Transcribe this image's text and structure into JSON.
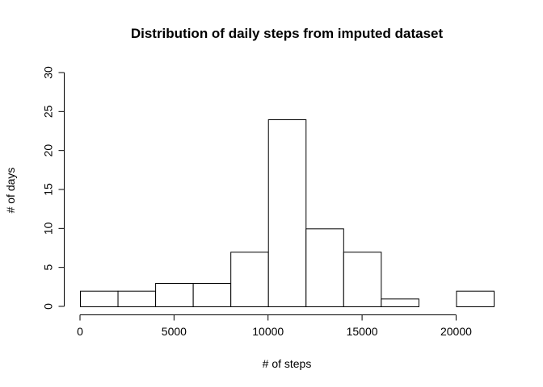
{
  "chart_data": {
    "type": "bar",
    "subtype": "histogram",
    "title": "Distribution of daily steps from imputed dataset",
    "xlabel": "# of steps",
    "ylabel": "# of days",
    "bin_edges": [
      0,
      2000,
      4000,
      6000,
      8000,
      10000,
      12000,
      14000,
      16000,
      18000,
      20000,
      22000
    ],
    "values": [
      2,
      2,
      3,
      3,
      7,
      24,
      10,
      7,
      1,
      0,
      2
    ],
    "xlim": [
      0,
      22000
    ],
    "ylim": [
      0,
      30
    ],
    "xticks": [
      0,
      5000,
      10000,
      15000,
      20000
    ],
    "yticks": [
      0,
      5,
      10,
      15,
      20,
      25,
      30
    ],
    "grid": false,
    "legend": "none",
    "colors": {
      "bar_fill": "#ffffff",
      "bar_stroke": "#000000"
    }
  }
}
